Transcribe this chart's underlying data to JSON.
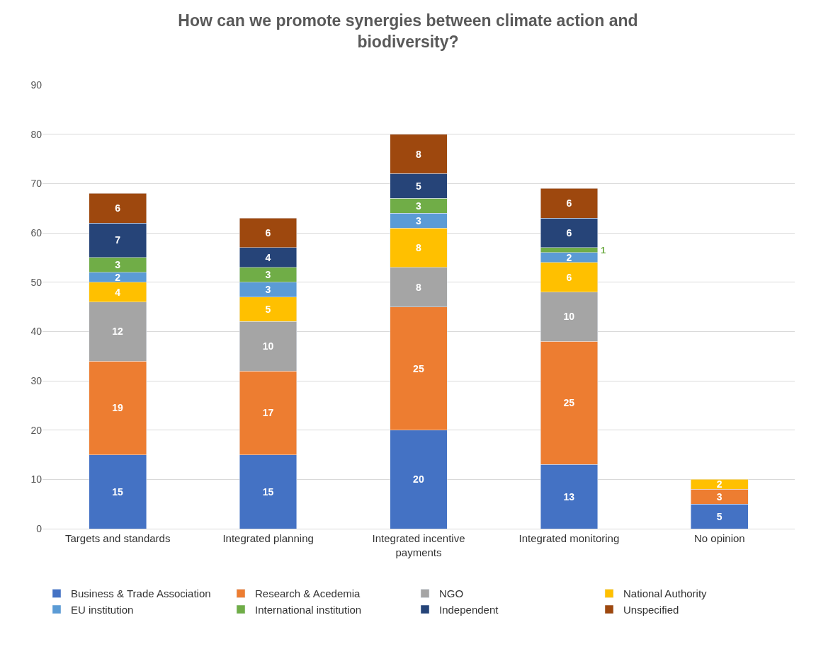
{
  "chart_data": {
    "type": "bar",
    "stacked": true,
    "title": "How can we promote synergies between climate action and biodiversity?",
    "categories": [
      "Targets and standards",
      "Integrated planning",
      "Integrated incentive payments",
      "Integrated monitoring",
      "No opinion"
    ],
    "series": [
      {
        "name": "Business & Trade Association",
        "color": "#4472c4",
        "values": [
          15,
          15,
          20,
          13,
          5
        ]
      },
      {
        "name": "Research & Acedemia",
        "color": "#ed7d31",
        "values": [
          19,
          17,
          25,
          25,
          3
        ]
      },
      {
        "name": "NGO",
        "color": "#a5a5a5",
        "values": [
          12,
          10,
          8,
          10,
          null
        ]
      },
      {
        "name": "National Authority",
        "color": "#ffc000",
        "values": [
          4,
          5,
          8,
          6,
          2
        ]
      },
      {
        "name": "EU institution",
        "color": "#5b9bd5",
        "values": [
          2,
          3,
          3,
          2,
          null
        ]
      },
      {
        "name": "International institution",
        "color": "#70ad47",
        "values": [
          3,
          3,
          3,
          1,
          null
        ]
      },
      {
        "name": "Independent",
        "color": "#264478",
        "values": [
          7,
          4,
          5,
          6,
          null
        ]
      },
      {
        "name": "Unspecified",
        "color": "#9e480e",
        "values": [
          6,
          6,
          8,
          6,
          null
        ]
      }
    ],
    "ylim": [
      0,
      90
    ],
    "yticks": [
      0,
      10,
      20,
      30,
      40,
      50,
      60,
      70,
      80,
      90
    ],
    "grid": "y",
    "legend": "bottom",
    "data_labels": true
  }
}
